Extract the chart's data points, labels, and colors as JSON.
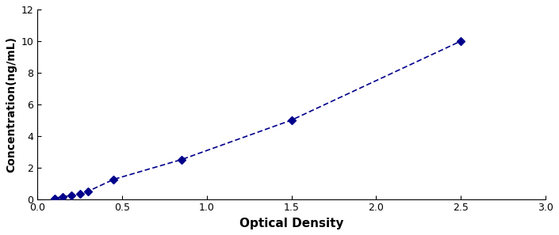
{
  "x_data": [
    0.1,
    0.15,
    0.2,
    0.25,
    0.3,
    0.45,
    0.85,
    1.5,
    2.5
  ],
  "y_data": [
    0.05,
    0.15,
    0.22,
    0.32,
    0.5,
    1.25,
    2.5,
    5.0,
    10.0
  ],
  "line_color": "#00008B",
  "marker_color": "#00008B",
  "marker": "D",
  "marker_size": 5,
  "line_width": 1.2,
  "xlabel": "Optical Density",
  "ylabel": "Concentration(ng/mL)",
  "xlim": [
    0,
    3
  ],
  "ylim": [
    0,
    12
  ],
  "xticks": [
    0,
    0.5,
    1,
    1.5,
    2,
    2.5,
    3
  ],
  "yticks": [
    0,
    2,
    4,
    6,
    8,
    10,
    12
  ],
  "bg_color": "#ffffff",
  "border_color": "#000000",
  "tick_fontsize": 9,
  "label_fontsize": 11,
  "fig_width": 7.05,
  "fig_height": 2.97,
  "dpi": 100
}
